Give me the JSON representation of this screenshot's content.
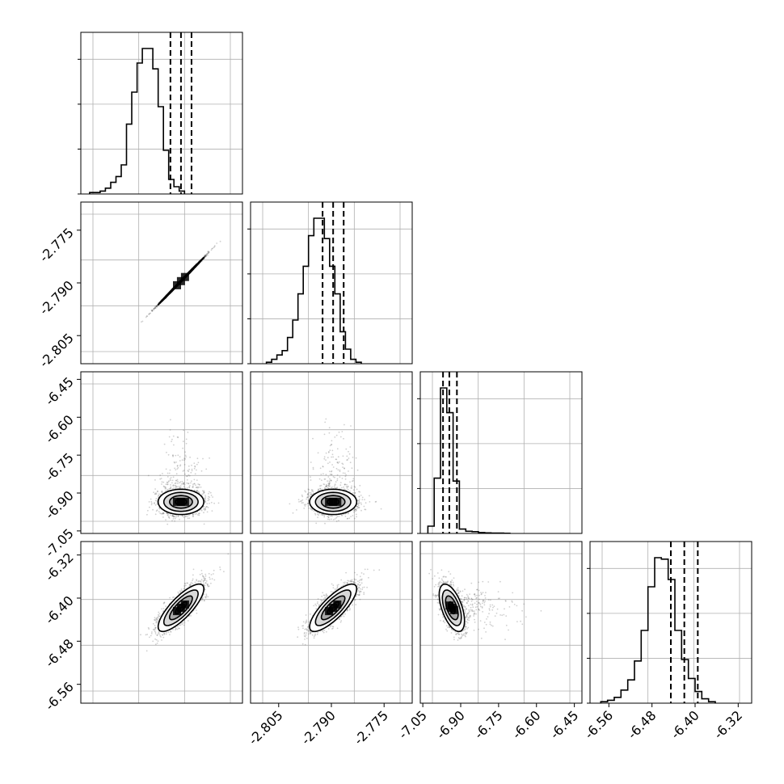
{
  "chart_data": {
    "type": "corner",
    "title": "",
    "grid": true,
    "parameters": [
      {
        "name": "",
        "range": [
          -2.813,
          -2.767
        ],
        "ticks": [],
        "tick_labels": [],
        "quantiles": [
          -2.7875,
          -2.7845,
          -2.7815
        ],
        "histogram": {
          "bin_start": -2.8105,
          "bin_width": 0.0015,
          "counts": [
            1,
            1,
            2,
            4,
            8,
            12,
            20,
            48,
            70,
            90,
            100,
            100,
            86,
            60,
            30,
            10,
            5,
            2
          ]
        }
      },
      {
        "name": "",
        "range": [
          -2.813,
          -2.767
        ],
        "ticks": [
          -2.805,
          -2.79,
          -2.775
        ],
        "tick_labels": [
          "-2.805",
          "-2.790",
          "-2.775"
        ],
        "quantiles": [
          -2.7925,
          -2.7895,
          -2.7865
        ],
        "histogram": {
          "bin_start": -2.8085,
          "bin_width": 0.0015,
          "counts": [
            1,
            3,
            6,
            9,
            18,
            30,
            48,
            67,
            88,
            100,
            100,
            86,
            67,
            48,
            22,
            10,
            3,
            1
          ]
        }
      },
      {
        "name": "",
        "range": [
          -7.06,
          -6.42
        ],
        "ticks": [
          -7.05,
          -6.9,
          -6.75,
          -6.6,
          -6.45
        ],
        "tick_labels": [
          "-7.05",
          "-6.90",
          "-6.75",
          "-6.60",
          "-6.45"
        ],
        "quantiles": [
          -6.97,
          -6.945,
          -6.915
        ],
        "histogram": {
          "bin_start": -7.03,
          "bin_width": 0.025,
          "counts": [
            5,
            38,
            100,
            83,
            36,
            3,
            1.5,
            1.2,
            0.6,
            0.4,
            0.3,
            0.3,
            0.1
          ]
        }
      },
      {
        "name": "",
        "range": [
          -6.595,
          -6.295
        ],
        "ticks": [
          -6.56,
          -6.48,
          -6.4,
          -6.32
        ],
        "tick_labels": [
          "-6.56",
          "-6.48",
          "-6.40",
          "-6.32"
        ],
        "quantiles": [
          -6.445,
          -6.42,
          -6.395
        ],
        "histogram": {
          "bin_start": -6.575,
          "bin_width": 0.0125,
          "counts": [
            1,
            2,
            4,
            9,
            16,
            29,
            50,
            80,
            100,
            99,
            85,
            50,
            30,
            17,
            8,
            3,
            1
          ]
        }
      }
    ],
    "pairs": [
      {
        "row": 1,
        "col": 0,
        "mean": [
          -2.7845,
          -2.7895
        ],
        "sd": [
          0.00325,
          0.00335
        ],
        "corr": 0.999
      },
      {
        "row": 2,
        "col": 0,
        "mean": [
          -2.7845,
          -6.935
        ],
        "sd": [
          0.00325,
          0.025
        ],
        "corr": 0.0
      },
      {
        "row": 2,
        "col": 1,
        "mean": [
          -2.7895,
          -6.935
        ],
        "sd": [
          0.00335,
          0.025
        ],
        "corr": 0.0
      },
      {
        "row": 3,
        "col": 0,
        "mean": [
          -2.7845,
          -6.418
        ],
        "sd": [
          0.00325,
          0.022
        ],
        "corr": 0.8
      },
      {
        "row": 3,
        "col": 1,
        "mean": [
          -2.7895,
          -6.418
        ],
        "sd": [
          0.00335,
          0.022
        ],
        "corr": 0.8
      },
      {
        "row": 3,
        "col": 2,
        "mean": [
          -6.935,
          -6.418
        ],
        "sd": [
          0.025,
          0.022
        ],
        "corr": -0.55
      }
    ],
    "contour_levels_sigma": [
      0.5,
      1.0,
      1.5,
      2.0
    ],
    "colors": {
      "line": "#000000",
      "grid": "#b0b0b0",
      "points": "#555555"
    }
  }
}
